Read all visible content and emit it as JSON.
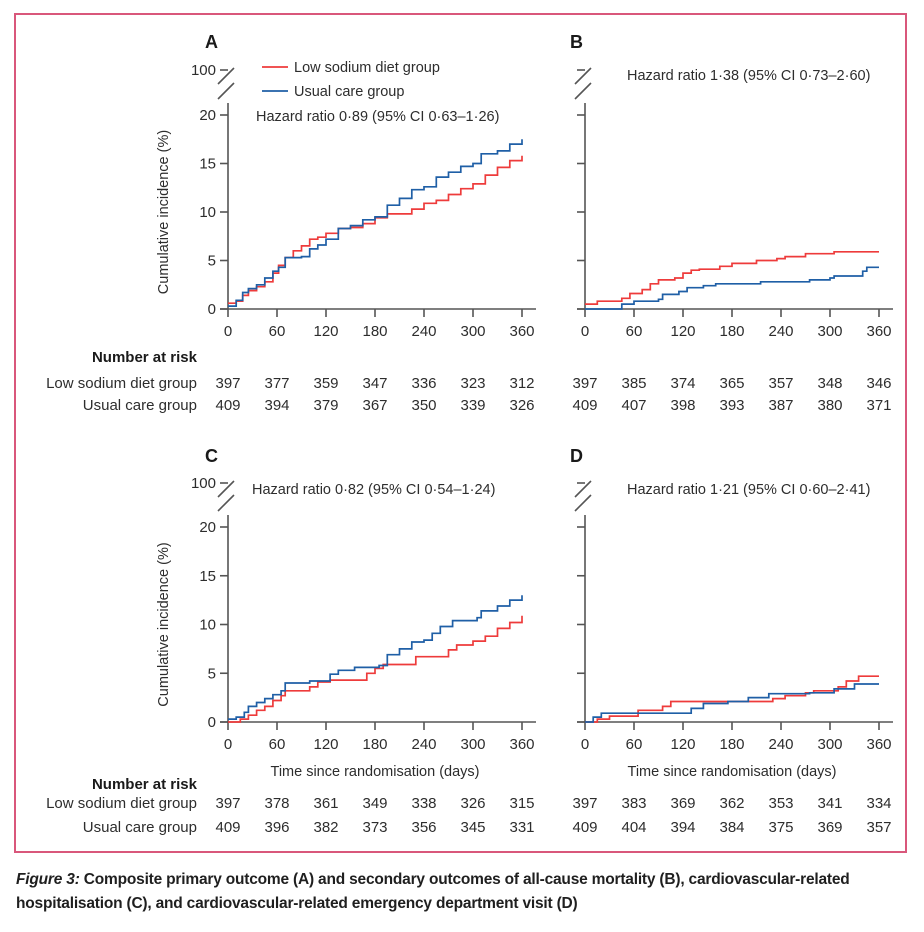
{
  "figure": {
    "caption_label": "Figure 3:",
    "caption_text": " Composite primary outcome (A) and secondary outcomes of all-cause mortality (B), cardiovascular-related hospitalisation (C), and cardiovascular-related emergency department visit (D)",
    "border_color": "#d9577b",
    "colors": {
      "low_sodium": "#ee3b3b",
      "usual_care": "#1f5fa6"
    }
  },
  "risk_table": {
    "heading": "Number at risk",
    "row_labels": [
      "Low sodium diet group",
      "Usual care group"
    ]
  },
  "chart_data": [
    {
      "type": "line",
      "panel": "A",
      "title": "Composite primary outcome",
      "xlabel": "",
      "ylabel": "Cumulative incidence (%)",
      "xlim": [
        0,
        360
      ],
      "ylim": [
        0,
        20
      ],
      "y_break_top_label": "100",
      "xticks": [
        "0",
        "60",
        "120",
        "180",
        "240",
        "300",
        "360"
      ],
      "yticks": [
        "0",
        "5",
        "10",
        "15",
        "20"
      ],
      "hazard_ratio": "Hazard ratio 0·89 (95% CI 0·63–1·26)",
      "legend": [
        "Low sodium diet group",
        "Usual care group"
      ],
      "legend_position": "top-left",
      "series": [
        {
          "name": "Low sodium diet group",
          "x": [
            0,
            10,
            18,
            25,
            35,
            45,
            55,
            62,
            70,
            80,
            90,
            100,
            110,
            120,
            135,
            150,
            165,
            180,
            195,
            210,
            225,
            240,
            255,
            270,
            285,
            300,
            315,
            330,
            345,
            360
          ],
          "y": [
            0.6,
            0.8,
            1.4,
            1.9,
            2.3,
            2.8,
            3.7,
            4.5,
            5.3,
            6.0,
            6.5,
            7.2,
            7.4,
            7.8,
            8.3,
            8.4,
            8.8,
            9.4,
            9.8,
            9.8,
            10.3,
            10.9,
            11.2,
            11.8,
            12.4,
            12.9,
            13.8,
            14.6,
            15.3,
            15.8
          ]
        },
        {
          "name": "Usual care group",
          "x": [
            0,
            10,
            18,
            25,
            35,
            45,
            55,
            62,
            70,
            80,
            90,
            100,
            110,
            120,
            135,
            150,
            165,
            180,
            195,
            210,
            225,
            240,
            255,
            270,
            285,
            300,
            310,
            330,
            345,
            360
          ],
          "y": [
            0.3,
            0.9,
            1.7,
            2.1,
            2.5,
            3.2,
            3.9,
            4.3,
            5.3,
            5.3,
            5.4,
            6.2,
            6.6,
            7.2,
            8.3,
            8.6,
            9.2,
            9.5,
            10.7,
            11.4,
            12.3,
            12.6,
            13.6,
            14.1,
            14.7,
            15.0,
            16.0,
            16.3,
            17.0,
            17.5
          ]
        }
      ],
      "number_at_risk": {
        "Low sodium diet group": [
          397,
          377,
          359,
          347,
          336,
          323,
          312
        ],
        "Usual care group": [
          409,
          394,
          379,
          367,
          350,
          339,
          326
        ]
      }
    },
    {
      "type": "line",
      "panel": "B",
      "title": "All-cause mortality",
      "xlabel": "",
      "ylabel": "",
      "xlim": [
        0,
        360
      ],
      "ylim": [
        0,
        20
      ],
      "xticks": [
        "0",
        "60",
        "120",
        "180",
        "240",
        "300",
        "360"
      ],
      "yticks": [],
      "hazard_ratio": "Hazard ratio 1·38 (95% CI 0·73–2·60)",
      "series": [
        {
          "name": "Low sodium diet group",
          "x": [
            0,
            15,
            45,
            55,
            70,
            80,
            90,
            110,
            120,
            130,
            140,
            165,
            180,
            210,
            235,
            245,
            270,
            305,
            360
          ],
          "y": [
            0.5,
            0.8,
            1.1,
            1.6,
            2.0,
            2.6,
            3.0,
            3.2,
            3.7,
            4.0,
            4.1,
            4.4,
            4.7,
            5.0,
            5.2,
            5.4,
            5.7,
            5.9,
            5.9
          ]
        },
        {
          "name": "Usual care group",
          "x": [
            0,
            40,
            45,
            60,
            90,
            95,
            115,
            125,
            145,
            160,
            215,
            275,
            300,
            305,
            340,
            345,
            360
          ],
          "y": [
            0.0,
            0.0,
            0.5,
            0.8,
            1.0,
            1.5,
            1.8,
            2.2,
            2.4,
            2.6,
            2.8,
            3.0,
            3.2,
            3.4,
            3.9,
            4.3,
            4.3
          ]
        }
      ],
      "number_at_risk": {
        "Low sodium diet group": [
          397,
          385,
          374,
          365,
          357,
          348,
          346
        ],
        "Usual care group": [
          409,
          407,
          398,
          393,
          387,
          380,
          371
        ]
      }
    },
    {
      "type": "line",
      "panel": "C",
      "title": "Cardiovascular-related hospitalisation",
      "xlabel": "Time since randomisation (days)",
      "ylabel": "Cumulative incidence (%)",
      "xlim": [
        0,
        360
      ],
      "ylim": [
        0,
        20
      ],
      "y_break_top_label": "100",
      "xticks": [
        "0",
        "60",
        "120",
        "180",
        "240",
        "300",
        "360"
      ],
      "yticks": [
        "0",
        "5",
        "10",
        "15",
        "20"
      ],
      "hazard_ratio": "Hazard ratio 0·82 (95% CI 0·54–1·24)",
      "series": [
        {
          "name": "Low sodium diet group",
          "x": [
            0,
            15,
            25,
            35,
            45,
            55,
            65,
            70,
            100,
            110,
            125,
            170,
            180,
            190,
            230,
            240,
            270,
            280,
            300,
            315,
            330,
            345,
            360
          ],
          "y": [
            0.0,
            0.3,
            0.7,
            1.2,
            1.6,
            2.2,
            2.7,
            3.2,
            3.6,
            4.1,
            4.3,
            5.0,
            5.5,
            5.9,
            6.7,
            6.7,
            7.4,
            7.9,
            8.3,
            8.8,
            9.6,
            10.2,
            10.9
          ]
        },
        {
          "name": "Usual care group",
          "x": [
            0,
            10,
            20,
            25,
            35,
            45,
            55,
            65,
            70,
            100,
            125,
            135,
            155,
            185,
            195,
            210,
            225,
            240,
            250,
            260,
            275,
            305,
            310,
            330,
            345,
            360
          ],
          "y": [
            0.3,
            0.5,
            1.0,
            1.6,
            2.0,
            2.4,
            2.8,
            3.2,
            4.0,
            4.2,
            4.9,
            5.3,
            5.6,
            5.8,
            6.9,
            7.5,
            8.2,
            8.4,
            9.1,
            9.8,
            10.4,
            10.7,
            11.4,
            11.9,
            12.5,
            13.0
          ]
        }
      ],
      "number_at_risk": {
        "Low sodium diet group": [
          397,
          378,
          361,
          349,
          338,
          326,
          315
        ],
        "Usual care group": [
          409,
          396,
          382,
          373,
          356,
          345,
          331
        ]
      }
    },
    {
      "type": "line",
      "panel": "D",
      "title": "Cardiovascular-related emergency department visit",
      "xlabel": "Time since randomisation (days)",
      "ylabel": "",
      "xlim": [
        0,
        360
      ],
      "ylim": [
        0,
        20
      ],
      "xticks": [
        "0",
        "60",
        "120",
        "180",
        "240",
        "300",
        "360"
      ],
      "yticks": [],
      "hazard_ratio": "Hazard ratio 1·21 (95% CI 0·60–2·41)",
      "series": [
        {
          "name": "Low sodium diet group",
          "x": [
            0,
            15,
            30,
            65,
            95,
            105,
            155,
            180,
            230,
            245,
            270,
            280,
            310,
            320,
            335,
            360
          ],
          "y": [
            0.0,
            0.3,
            0.6,
            1.2,
            1.6,
            2.1,
            2.1,
            2.1,
            2.4,
            2.7,
            3.0,
            3.2,
            3.6,
            4.2,
            4.7,
            4.7
          ]
        },
        {
          "name": "Usual care group",
          "x": [
            0,
            10,
            20,
            105,
            130,
            145,
            175,
            200,
            225,
            275,
            305,
            330,
            360
          ],
          "y": [
            0.0,
            0.5,
            0.9,
            0.9,
            1.4,
            1.9,
            2.1,
            2.5,
            2.9,
            3.0,
            3.4,
            3.9,
            3.9
          ]
        }
      ],
      "number_at_risk": {
        "Low sodium diet group": [
          397,
          383,
          369,
          362,
          353,
          341,
          334
        ],
        "Usual care group": [
          409,
          404,
          394,
          384,
          375,
          369,
          357
        ]
      }
    }
  ]
}
